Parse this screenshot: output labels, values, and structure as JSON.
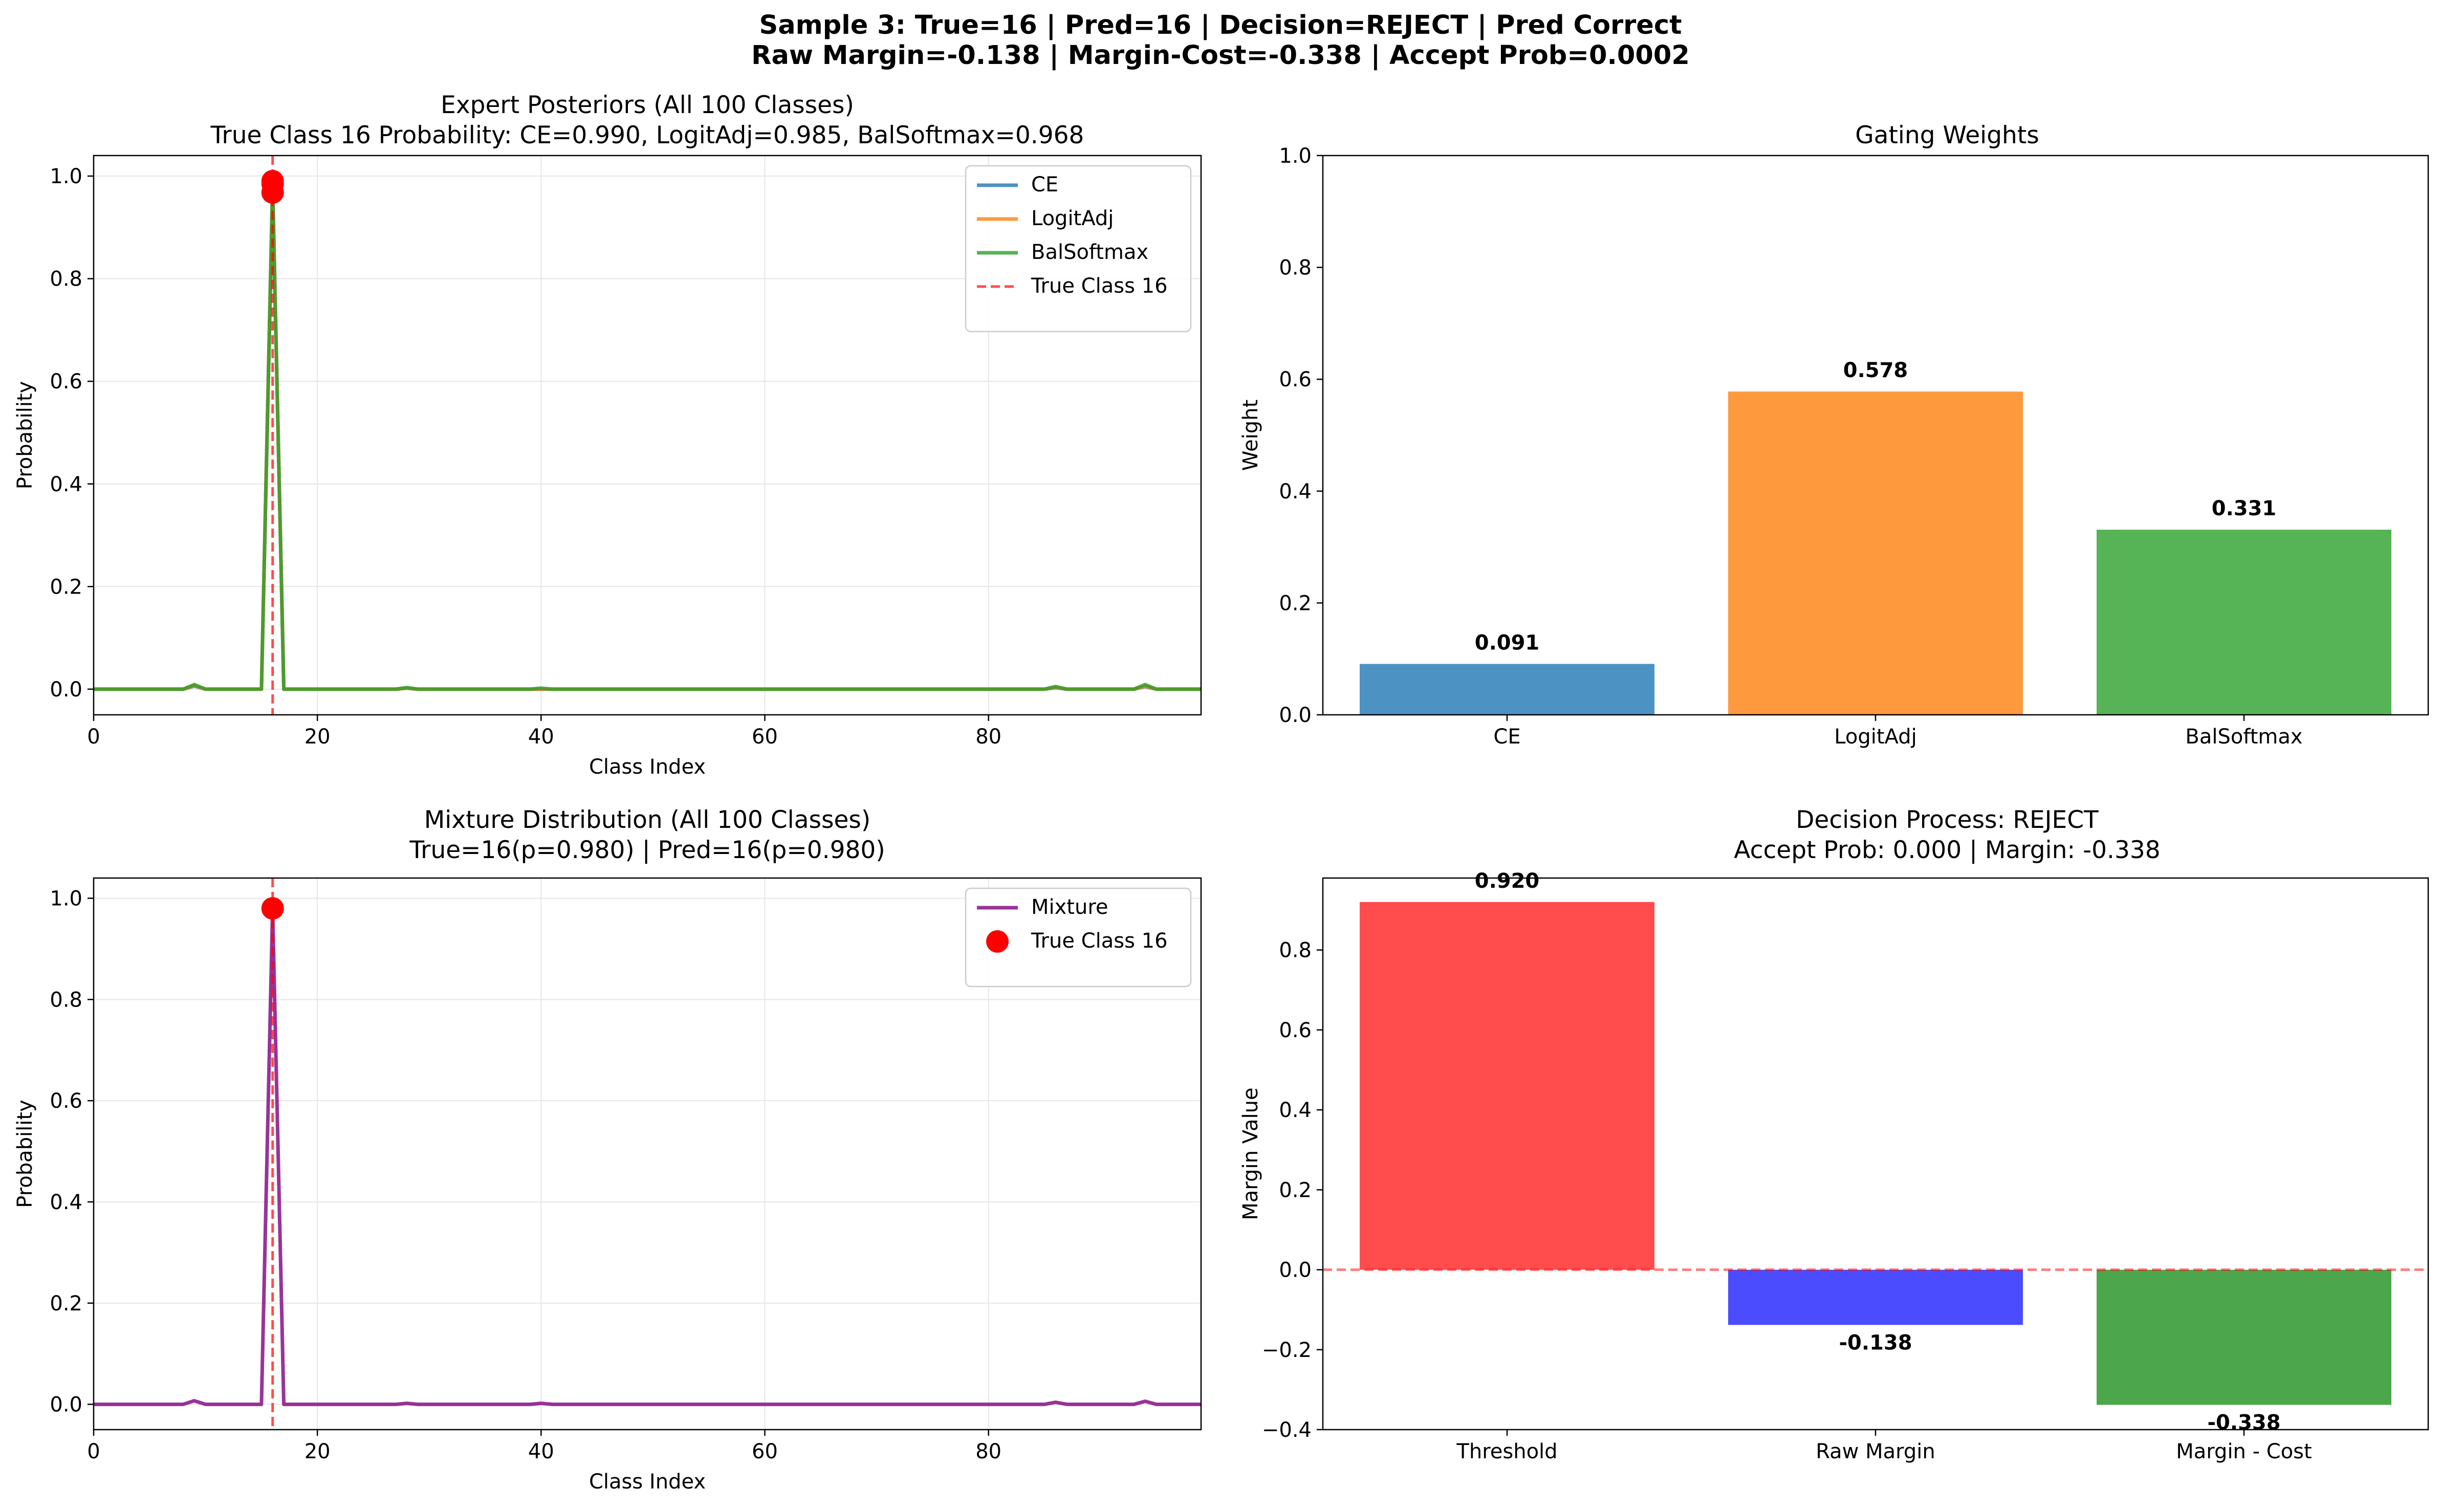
{
  "suptitle": {
    "line1": "Sample 3: True=16 | Pred=16 | Decision=REJECT | Pred Correct",
    "line2": "Raw Margin=-0.138 | Margin-Cost=-0.338 | Accept Prob=0.0002"
  },
  "colors": {
    "ce": "#1f77b4",
    "logitadj": "#ff7f0e",
    "balsoftmax": "#2ca02c",
    "mixture": "#800080",
    "true_class": "#ff0000",
    "threshold_bar": "#ff0000",
    "raw_margin_bar": "#0000ff",
    "margin_cost_bar": "#008000"
  },
  "chart_data": [
    {
      "id": "expert_posteriors",
      "type": "line",
      "title": "Expert Posteriors (All 100 Classes)",
      "subtitle": "True Class 16 Probability: CE=0.990, LogitAdj=0.985, BalSoftmax=0.968",
      "xlabel": "Class Index",
      "ylabel": "Probability",
      "xlim": [
        0,
        99
      ],
      "ylim": [
        -0.05,
        1.04
      ],
      "xticks": [
        "0",
        "20",
        "40",
        "60",
        "80"
      ],
      "yticks": [
        "0.0",
        "0.2",
        "0.4",
        "0.6",
        "0.8",
        "1.0"
      ],
      "grid": true,
      "legend": "top-right",
      "true_class": 16,
      "true_class_label": "True Class 16",
      "series": [
        {
          "name": "CE",
          "peak": 0.99,
          "bumps": [
            [
              9,
              0.006
            ],
            [
              28,
              0.002
            ],
            [
              86,
              0.003
            ],
            [
              94,
              0.005
            ]
          ]
        },
        {
          "name": "LogitAdj",
          "peak": 0.985,
          "bumps": [
            [
              9,
              0.007
            ],
            [
              28,
              0.002
            ],
            [
              86,
              0.004
            ],
            [
              94,
              0.006
            ]
          ]
        },
        {
          "name": "BalSoftmax",
          "peak": 0.968,
          "bumps": [
            [
              9,
              0.009
            ],
            [
              28,
              0.003
            ],
            [
              40,
              0.002
            ],
            [
              86,
              0.005
            ],
            [
              94,
              0.009
            ]
          ]
        }
      ]
    },
    {
      "id": "gating_weights",
      "type": "bar",
      "title": "Gating Weights",
      "xlabel": "",
      "ylabel": "Weight",
      "categories": [
        "CE",
        "LogitAdj",
        "BalSoftmax"
      ],
      "values": [
        0.091,
        0.578,
        0.331
      ],
      "value_labels": [
        "0.091",
        "0.578",
        "0.331"
      ],
      "ylim": [
        0,
        1.0
      ],
      "yticks": [
        "0.0",
        "0.2",
        "0.4",
        "0.6",
        "0.8",
        "1.0"
      ],
      "grid": false
    },
    {
      "id": "mixture_distribution",
      "type": "line",
      "title": "Mixture Distribution (All 100 Classes)",
      "subtitle": "True=16(p=0.980) | Pred=16(p=0.980)",
      "xlabel": "Class Index",
      "ylabel": "Probability",
      "xlim": [
        0,
        99
      ],
      "ylim": [
        -0.05,
        1.04
      ],
      "xticks": [
        "0",
        "20",
        "40",
        "60",
        "80"
      ],
      "yticks": [
        "0.0",
        "0.2",
        "0.4",
        "0.6",
        "0.8",
        "1.0"
      ],
      "grid": true,
      "legend": "top-right",
      "true_class": 16,
      "true_class_label": "True Class 16",
      "series": [
        {
          "name": "Mixture",
          "peak": 0.98,
          "bumps": [
            [
              9,
              0.007
            ],
            [
              28,
              0.002
            ],
            [
              40,
              0.002
            ],
            [
              86,
              0.004
            ],
            [
              94,
              0.006
            ]
          ]
        }
      ]
    },
    {
      "id": "decision_process",
      "type": "bar",
      "title": "Decision Process: REJECT",
      "subtitle": "Accept Prob: 0.000 | Margin: -0.338",
      "xlabel": "",
      "ylabel": "Margin Value",
      "categories": [
        "Threshold",
        "Raw Margin",
        "Margin - Cost"
      ],
      "values": [
        0.92,
        -0.138,
        -0.338
      ],
      "value_labels": [
        "0.920",
        "-0.138",
        "-0.338"
      ],
      "ylim": [
        -0.4,
        0.98
      ],
      "yticks": [
        "−0.4",
        "−0.2",
        "0.0",
        "0.2",
        "0.4",
        "0.6",
        "0.8"
      ],
      "zero_line": true,
      "grid": false
    }
  ]
}
